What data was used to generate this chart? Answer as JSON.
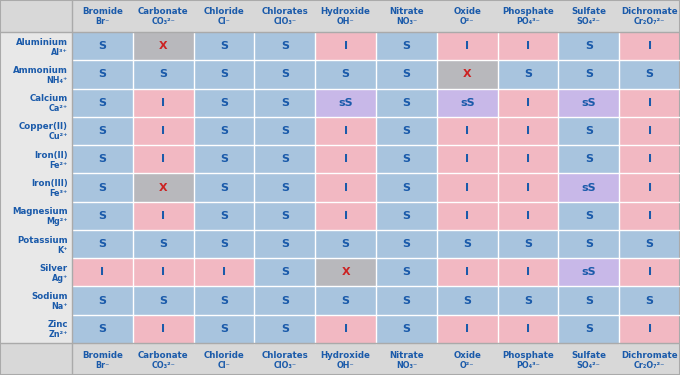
{
  "col_headers": [
    [
      "Bromide",
      "Br⁻"
    ],
    [
      "Carbonate",
      "CO₃²⁻"
    ],
    [
      "Chloride",
      "Cl⁻"
    ],
    [
      "Chlorates",
      "ClO₃⁻"
    ],
    [
      "Hydroxide",
      "OH⁻"
    ],
    [
      "Nitrate",
      "NO₃⁻"
    ],
    [
      "Oxide",
      "O²⁻"
    ],
    [
      "Phosphate",
      "PO₄³⁻"
    ],
    [
      "Sulfate",
      "SO₄²⁻"
    ],
    [
      "Dichromate",
      "Cr₂O₇²⁻"
    ]
  ],
  "row_headers": [
    [
      "Aluminium",
      "Al³⁺"
    ],
    [
      "Ammonium",
      "NH₄⁺"
    ],
    [
      "Calcium",
      "Ca²⁺"
    ],
    [
      "Copper(II)",
      "Cu²⁺"
    ],
    [
      "Iron(II)",
      "Fe²⁺"
    ],
    [
      "Iron(III)",
      "Fe³⁺"
    ],
    [
      "Magnesium",
      "Mg²⁺"
    ],
    [
      "Potassium",
      "K⁺"
    ],
    [
      "Silver",
      "Ag⁺"
    ],
    [
      "Sodium",
      "Na⁺"
    ],
    [
      "Zinc",
      "Zn²⁺"
    ]
  ],
  "cells": [
    [
      "S",
      "X",
      "S",
      "S",
      "I",
      "S",
      "I",
      "I",
      "S",
      "I"
    ],
    [
      "S",
      "S",
      "S",
      "S",
      "S",
      "S",
      "X",
      "S",
      "S",
      "S"
    ],
    [
      "S",
      "I",
      "S",
      "S",
      "sS",
      "S",
      "sS",
      "I",
      "sS",
      "I"
    ],
    [
      "S",
      "I",
      "S",
      "S",
      "I",
      "S",
      "I",
      "I",
      "S",
      "I"
    ],
    [
      "S",
      "I",
      "S",
      "S",
      "I",
      "S",
      "I",
      "I",
      "S",
      "I"
    ],
    [
      "S",
      "X",
      "S",
      "S",
      "I",
      "S",
      "I",
      "I",
      "sS",
      "I"
    ],
    [
      "S",
      "I",
      "S",
      "S",
      "I",
      "S",
      "I",
      "I",
      "S",
      "I"
    ],
    [
      "S",
      "S",
      "S",
      "S",
      "S",
      "S",
      "S",
      "S",
      "S",
      "S"
    ],
    [
      "I",
      "I",
      "I",
      "S",
      "X",
      "S",
      "I",
      "I",
      "sS",
      "I"
    ],
    [
      "S",
      "S",
      "S",
      "S",
      "S",
      "S",
      "S",
      "S",
      "S",
      "S"
    ],
    [
      "S",
      "I",
      "S",
      "S",
      "I",
      "S",
      "I",
      "I",
      "S",
      "I"
    ]
  ],
  "color_S": "#a8c4de",
  "color_I": "#f2b8c2",
  "color_X_grey": "#b8b8bc",
  "color_sS": "#c8b8e8",
  "color_text_blue": "#1a5aaa",
  "color_text_red": "#cc2222",
  "fig_bg": "#d8d8d8",
  "header_bg": "#d8d8d8",
  "row_label_bg": "#e8e8e8"
}
